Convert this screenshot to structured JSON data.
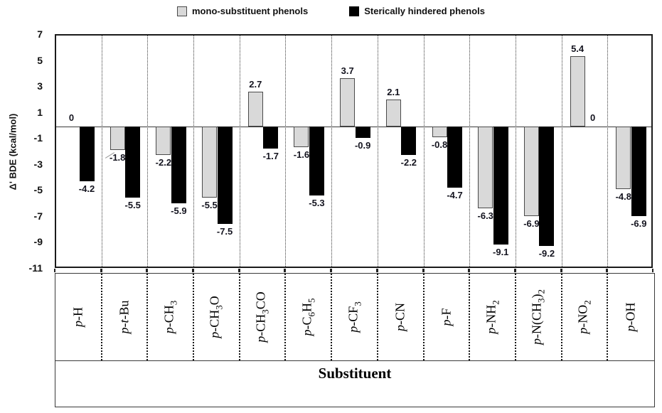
{
  "legend": {
    "items": [
      {
        "name": "mono",
        "label": "mono-substituent phenols",
        "swatch_color": "#d9d9d9"
      },
      {
        "name": "hindered",
        "label": "Sterically hindered phenols",
        "swatch_color": "#000000"
      }
    ]
  },
  "y_axis": {
    "title": "Δ' BDE (kcal/mol)",
    "ticks": [
      7,
      5,
      3,
      1,
      -1,
      -3,
      -5,
      -7,
      -9,
      -11
    ],
    "min": -11,
    "max": 7
  },
  "x_axis": {
    "title": "Substituent"
  },
  "chart_data": {
    "type": "bar",
    "title": "",
    "xlabel": "Substituent",
    "ylabel": "Δ' BDE (kcal/mol)",
    "ylim": [
      -11,
      7
    ],
    "grid": "vertical-dotted-separators",
    "legend_position": "top-center",
    "value_labels": true,
    "categories": [
      "p-H",
      "p-t-Bu",
      "p-CH3",
      "p-CH3O",
      "p-CH3CO",
      "p-C6H5",
      "p-CF3",
      "p-CN",
      "p-F",
      "p-NH2",
      "p-N(CH3)2",
      "p-NO2",
      "p-OH"
    ],
    "category_segments": [
      [
        {
          "t": "p",
          "s": "i"
        },
        {
          "t": "-H",
          "s": ""
        }
      ],
      [
        {
          "t": "p",
          "s": "i"
        },
        {
          "t": "-",
          "s": ""
        },
        {
          "t": "t",
          "s": "i"
        },
        {
          "t": "-Bu",
          "s": ""
        }
      ],
      [
        {
          "t": "p",
          "s": "i"
        },
        {
          "t": "-CH",
          "s": ""
        },
        {
          "t": "3",
          "s": "sub"
        }
      ],
      [
        {
          "t": "p",
          "s": "i"
        },
        {
          "t": "-CH",
          "s": ""
        },
        {
          "t": "3",
          "s": "sub"
        },
        {
          "t": "O",
          "s": ""
        }
      ],
      [
        {
          "t": "p",
          "s": "i"
        },
        {
          "t": "-CH",
          "s": ""
        },
        {
          "t": "3",
          "s": "sub"
        },
        {
          "t": "CO",
          "s": ""
        }
      ],
      [
        {
          "t": "p",
          "s": "i"
        },
        {
          "t": "-C",
          "s": ""
        },
        {
          "t": "6",
          "s": "sub"
        },
        {
          "t": "H",
          "s": ""
        },
        {
          "t": "5",
          "s": "sub"
        }
      ],
      [
        {
          "t": "p",
          "s": "i"
        },
        {
          "t": "-CF",
          "s": ""
        },
        {
          "t": "3",
          "s": "sub"
        }
      ],
      [
        {
          "t": "p",
          "s": "i"
        },
        {
          "t": "-CN",
          "s": ""
        }
      ],
      [
        {
          "t": "p",
          "s": "i"
        },
        {
          "t": "-F",
          "s": ""
        }
      ],
      [
        {
          "t": "p",
          "s": "i"
        },
        {
          "t": "-NH",
          "s": ""
        },
        {
          "t": "2",
          "s": "sub"
        }
      ],
      [
        {
          "t": "p",
          "s": "i"
        },
        {
          "t": "-N(CH",
          "s": ""
        },
        {
          "t": "3",
          "s": "sub"
        },
        {
          "t": ")",
          "s": ""
        },
        {
          "t": "2",
          "s": "sub"
        }
      ],
      [
        {
          "t": "p",
          "s": "i"
        },
        {
          "t": "-NO",
          "s": ""
        },
        {
          "t": "2",
          "s": "sub"
        }
      ],
      [
        {
          "t": "p",
          "s": "i"
        },
        {
          "t": "-OH",
          "s": ""
        }
      ]
    ],
    "series": [
      {
        "name": "mono-substituent phenols",
        "color": "#d9d9d9",
        "values": [
          0,
          -1.8,
          -2.2,
          -5.5,
          2.7,
          -1.6,
          3.7,
          2.1,
          -0.8,
          -6.3,
          -6.9,
          5.4,
          -4.8
        ]
      },
      {
        "name": "Sterically hindered phenols",
        "color": "#000000",
        "values": [
          -4.2,
          -5.5,
          -5.9,
          -7.5,
          -1.7,
          -5.3,
          -0.9,
          -2.2,
          -4.7,
          -9.1,
          -9.2,
          0,
          -6.9
        ]
      }
    ]
  }
}
